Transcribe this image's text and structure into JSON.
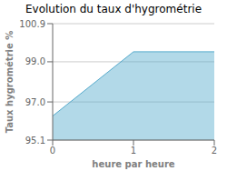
{
  "chart_data": {
    "type": "area",
    "title": "Evolution du taux d'hygrométrie",
    "xlabel": "heure par heure",
    "ylabel": "Taux hygrométrie %",
    "x": [
      0,
      1,
      2
    ],
    "series": [
      {
        "name": "Taux hygrométrie %",
        "color": "#55aacc",
        "values": [
          96.3,
          99.5,
          99.5
        ]
      }
    ],
    "xlim": [
      0,
      2
    ],
    "xticks": [
      0,
      1,
      2
    ],
    "ylim": [
      95.1,
      100.9
    ],
    "yticks": [
      95.1,
      {
        "value": 97.0,
        "label": "97.0"
      },
      {
        "value": 99.0,
        "label": "99.0"
      },
      100.9
    ],
    "grid": true
  }
}
